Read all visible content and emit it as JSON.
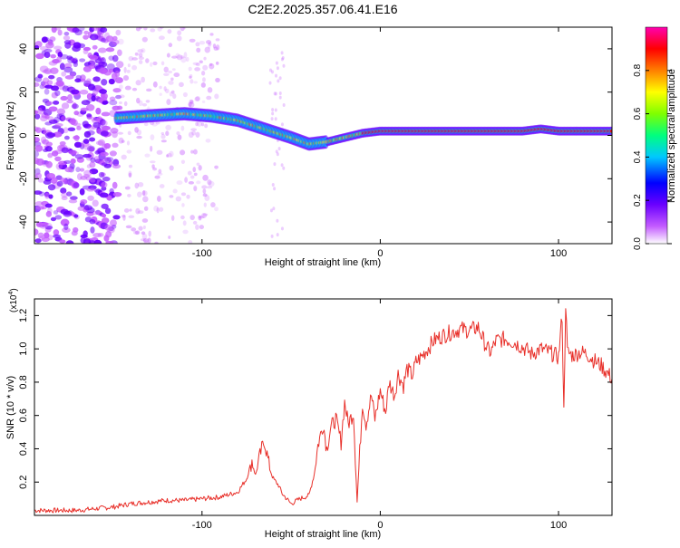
{
  "title": "C2E2.2025.357.06.41.E16",
  "colors": {
    "snr_line": "#e8302a",
    "axis": "#000000",
    "spectral_scale": [
      "#ffffff",
      "#c45cff",
      "#6a00ff",
      "#0000ff",
      "#00c8ff",
      "#00ff7f",
      "#7fff00",
      "#ffff00",
      "#ff7f00",
      "#ff0000",
      "#ff00b0"
    ]
  },
  "chart_data": [
    {
      "type": "heatmap",
      "title": "C2E2.2025.357.06.41.E16",
      "xlabel": "Height of straight line (km)",
      "ylabel": "Frequency (Hz)",
      "xlim": [
        -194,
        130
      ],
      "ylim": [
        -50,
        50
      ],
      "xticks": [
        -100,
        0,
        100
      ],
      "yticks": [
        -40,
        -20,
        0,
        20,
        40
      ],
      "colorbar": {
        "label": "Normalized spectral amplitude",
        "range": [
          0,
          1
        ],
        "ticks": [
          "0.0",
          "0.2",
          "0.4",
          "0.6",
          "0.8"
        ]
      },
      "ridge": {
        "x": [
          -148,
          -130,
          -110,
          -95,
          -80,
          -65,
          -50,
          -40,
          -30,
          -20,
          -10,
          0,
          20,
          40,
          60,
          80,
          90,
          100,
          110,
          130
        ],
        "freq": [
          8,
          9,
          10,
          9,
          7,
          3,
          -1,
          -4,
          -3,
          -1,
          1,
          2,
          2,
          2,
          2,
          2,
          3,
          2,
          2,
          2
        ]
      }
    },
    {
      "type": "line",
      "xlabel": "Height of straight line (km)",
      "ylabel": "SNR (10 * v/v)",
      "yscale_label": "(x10",
      "yscale_exp": "4",
      "xlim": [
        -194,
        130
      ],
      "ylim": [
        0,
        1.3
      ],
      "xticks": [
        -100,
        0,
        100
      ],
      "yticks": [
        0.2,
        0.4,
        0.6,
        0.8,
        1.0,
        1.2
      ],
      "series": [
        {
          "name": "SNR",
          "x": [
            -194,
            -180,
            -170,
            -160,
            -150,
            -140,
            -130,
            -120,
            -110,
            -100,
            -90,
            -80,
            -75,
            -72,
            -70,
            -67,
            -65,
            -62,
            -60,
            -57,
            -55,
            -50,
            -45,
            -40,
            -37,
            -35,
            -32,
            -30,
            -28,
            -25,
            -22,
            -20,
            -18,
            -15,
            -13,
            -10,
            -8,
            -5,
            -3,
            0,
            3,
            5,
            8,
            10,
            13,
            15,
            18,
            20,
            23,
            25,
            28,
            30,
            35,
            40,
            45,
            50,
            55,
            58,
            60,
            62,
            65,
            70,
            75,
            80,
            85,
            90,
            95,
            100,
            102,
            103,
            104,
            105,
            108,
            112,
            116,
            120,
            124,
            127,
            130
          ],
          "y": [
            0.03,
            0.03,
            0.03,
            0.04,
            0.05,
            0.07,
            0.08,
            0.09,
            0.09,
            0.1,
            0.11,
            0.14,
            0.22,
            0.33,
            0.24,
            0.38,
            0.45,
            0.28,
            0.22,
            0.18,
            0.13,
            0.07,
            0.1,
            0.12,
            0.25,
            0.42,
            0.55,
            0.4,
            0.52,
            0.58,
            0.44,
            0.68,
            0.55,
            0.62,
            0.08,
            0.68,
            0.55,
            0.72,
            0.58,
            0.75,
            0.62,
            0.8,
            0.72,
            0.85,
            0.78,
            0.88,
            0.84,
            0.92,
            0.95,
            0.98,
            1.02,
            1.05,
            1.08,
            1.1,
            1.12,
            1.11,
            1.13,
            1.05,
            1.0,
            0.98,
            1.05,
            1.06,
            1.04,
            1.01,
            0.97,
            1.0,
            0.98,
            0.95,
            1.2,
            0.62,
            1.28,
            0.98,
            0.96,
            0.98,
            0.97,
            0.93,
            0.9,
            0.86,
            0.82
          ]
        }
      ]
    }
  ]
}
